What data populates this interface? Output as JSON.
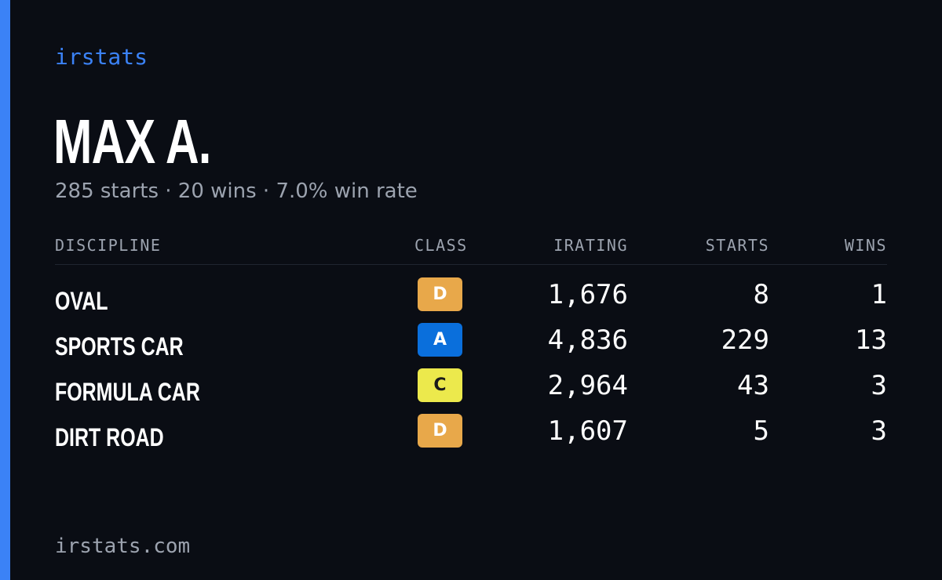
{
  "brand": "irstats",
  "player": {
    "name": "MAX A.",
    "summary": "285 starts · 20 wins · 7.0% win rate"
  },
  "table": {
    "headers": {
      "discipline": "DISCIPLINE",
      "class": "CLASS",
      "irating": "IRATING",
      "starts": "STARTS",
      "wins": "WINS"
    },
    "rows": [
      {
        "discipline": "OVAL",
        "class": "D",
        "class_color": "#e8a84a",
        "class_text_color": "#ffffff",
        "irating": "1,676",
        "starts": "8",
        "wins": "1"
      },
      {
        "discipline": "SPORTS CAR",
        "class": "A",
        "class_color": "#0a6fdc",
        "class_text_color": "#ffffff",
        "irating": "4,836",
        "starts": "229",
        "wins": "13"
      },
      {
        "discipline": "FORMULA CAR",
        "class": "C",
        "class_color": "#ece94c",
        "class_text_color": "#1a1a1a",
        "irating": "2,964",
        "starts": "43",
        "wins": "3"
      },
      {
        "discipline": "DIRT ROAD",
        "class": "D",
        "class_color": "#e8a84a",
        "class_text_color": "#ffffff",
        "irating": "1,607",
        "starts": "5",
        "wins": "3"
      }
    ]
  },
  "footer": "irstats.com",
  "colors": {
    "accent": "#3b82f6",
    "background": "#0a0d14",
    "muted_text": "#9ca3af"
  }
}
